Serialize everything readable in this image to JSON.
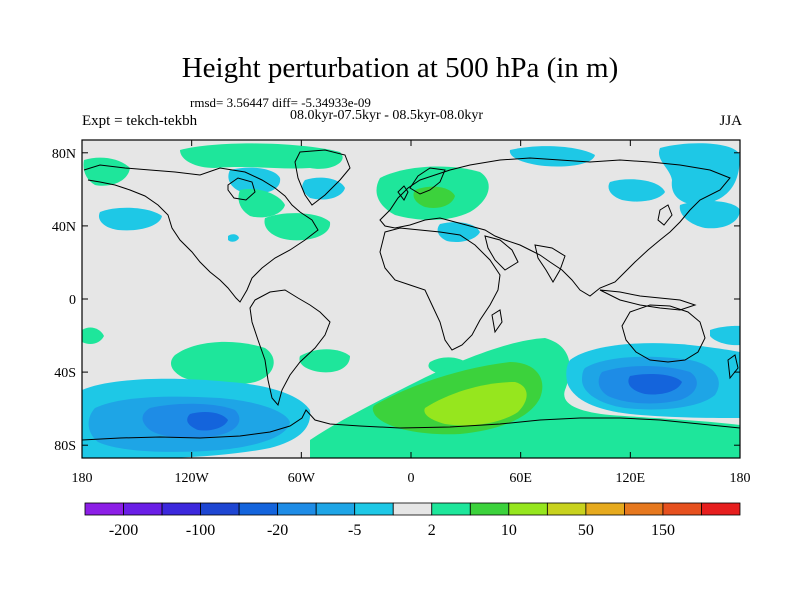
{
  "title": "Height perturbation at 500 hPa (in m)",
  "stats": "rmsd= 3.56447 diff= -5.34933e-09",
  "subtitle": "08.0kyr-07.5kyr - 08.5kyr-08.0kyr",
  "left_label": "Expt = tekch-tekbh",
  "right_label": "JJA",
  "axes": {
    "lat_ticks": [
      {
        "value": 80,
        "label": "80N"
      },
      {
        "value": 40,
        "label": "40N"
      },
      {
        "value": 0,
        "label": "0"
      },
      {
        "value": -40,
        "label": "40S"
      },
      {
        "value": -80,
        "label": "80S"
      }
    ],
    "lon_ticks": [
      {
        "value": -180,
        "label": "180"
      },
      {
        "value": -120,
        "label": "120W"
      },
      {
        "value": -60,
        "label": "60W"
      },
      {
        "value": 0,
        "label": "0"
      },
      {
        "value": 60,
        "label": "60E"
      },
      {
        "value": 120,
        "label": "120E"
      },
      {
        "value": 180,
        "label": "180"
      }
    ]
  },
  "colorbar": {
    "colors": [
      "#8c1ee6",
      "#6a1ee6",
      "#3c28dc",
      "#1e46d2",
      "#1464dc",
      "#1e8ce6",
      "#1ea5e6",
      "#1ec8e6",
      "#e6e6e6",
      "#1ee69b",
      "#3cd23c",
      "#96e61e",
      "#c8d21e",
      "#e6aa1e",
      "#e6781e",
      "#e6501e",
      "#e61e1e"
    ],
    "labels": [
      {
        "index": 1,
        "text": "-200"
      },
      {
        "index": 3,
        "text": "-100"
      },
      {
        "index": 5,
        "text": "-20"
      },
      {
        "index": 7,
        "text": "-5"
      },
      {
        "index": 9,
        "text": "2"
      },
      {
        "index": 11,
        "text": "10"
      },
      {
        "index": 13,
        "text": "50"
      },
      {
        "index": 15,
        "text": "150"
      }
    ]
  },
  "colors": {
    "background": "#e6e6e6",
    "cyan": "#1ec8e6",
    "light_blue": "#1ea5e6",
    "blue": "#1e8ce6",
    "mid_blue": "#1464dc",
    "green": "#1ee69b",
    "bright_green": "#3cd23c",
    "yellow_green": "#96e61e",
    "coast": "#000000"
  }
}
